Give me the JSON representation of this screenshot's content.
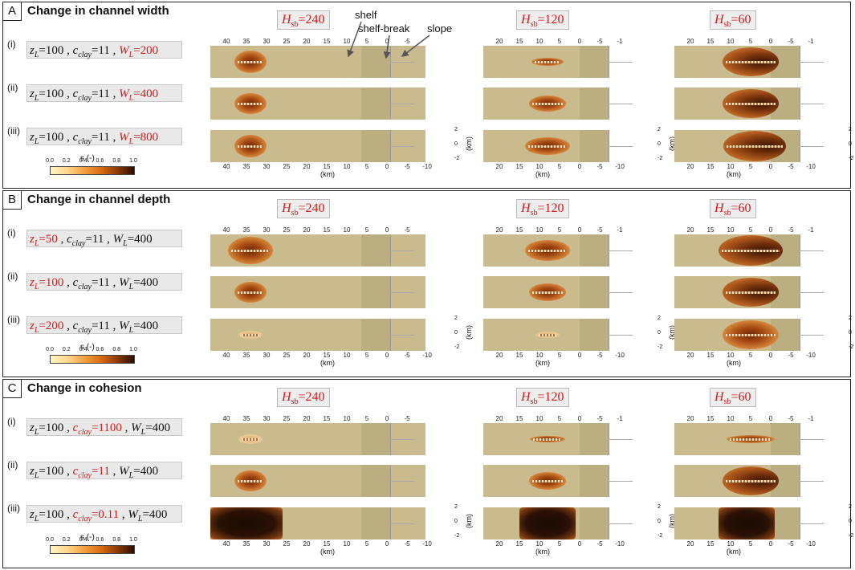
{
  "panels": [
    {
      "letter": "A",
      "title": "Change in channel width",
      "rows": [
        {
          "num": "(i)",
          "z": "100",
          "c": "11",
          "w": "200",
          "red": "w"
        },
        {
          "num": "(ii)",
          "z": "100",
          "c": "11",
          "w": "400",
          "red": "w"
        },
        {
          "num": "(iii)",
          "z": "100",
          "c": "11",
          "w": "800",
          "red": "w"
        }
      ]
    },
    {
      "letter": "B",
      "title": "Change in channel depth",
      "rows": [
        {
          "num": "(i)",
          "z": "50",
          "c": "11",
          "w": "400",
          "red": "z"
        },
        {
          "num": "(ii)",
          "z": "100",
          "c": "11",
          "w": "400",
          "red": "z"
        },
        {
          "num": "(iii)",
          "z": "200",
          "c": "11",
          "w": "400",
          "red": "z"
        }
      ]
    },
    {
      "letter": "C",
      "title": "Change in cohesion",
      "rows": [
        {
          "num": "(i)",
          "z": "100",
          "c": "1100",
          "w": "400",
          "red": "c"
        },
        {
          "num": "(ii)",
          "z": "100",
          "c": "11",
          "w": "400",
          "red": "c"
        },
        {
          "num": "(iii)",
          "z": "100",
          "c": "0.11",
          "w": "400",
          "red": "c"
        }
      ]
    }
  ],
  "columns": [
    {
      "hsb_label": "H",
      "hsb_sub": "sb",
      "hsb_value": "=240"
    },
    {
      "hsb_label": "H",
      "hsb_sub": "sb",
      "hsb_value": "=120"
    },
    {
      "hsb_label": "H",
      "hsb_sub": "sb",
      "hsb_value": "=60"
    }
  ],
  "axis": {
    "x_ticks_col1": [
      "40",
      "35",
      "30",
      "25",
      "20",
      "15",
      "10",
      "5",
      "0",
      "-5"
    ],
    "x_ticks_col1_bottom": [
      "40",
      "35",
      "30",
      "25",
      "20",
      "15",
      "10",
      "5",
      "0",
      "-5",
      "-10"
    ],
    "x_ticks_col23": [
      "20",
      "15",
      "10",
      "5",
      "0",
      "-5",
      "-1"
    ],
    "x_ticks_col23_bottom": [
      "20",
      "15",
      "10",
      "5",
      "0",
      "-5",
      "-10"
    ],
    "x_label": "(km)",
    "y_ticks": [
      "2",
      "0",
      "-2"
    ],
    "y_label": "(km)"
  },
  "annotations": {
    "shelf": "shelf",
    "shelf_break": "shelf-break",
    "slope": "slope"
  },
  "colorbar": {
    "label": "s (-)",
    "ticks": [
      "0.0",
      "0.2",
      "0.4",
      "0.6",
      "0.8",
      "1.0"
    ],
    "colors": [
      "#fff3c2",
      "#fdd98c",
      "#f5a142",
      "#d86c12",
      "#8e3a06",
      "#2a0e03"
    ]
  },
  "symbols": {
    "z": "z",
    "z_sub": "L",
    "c": "c",
    "c_sub": "clay",
    "w": "W",
    "w_sub": "L",
    "eq": "=",
    "sep": " , "
  }
}
